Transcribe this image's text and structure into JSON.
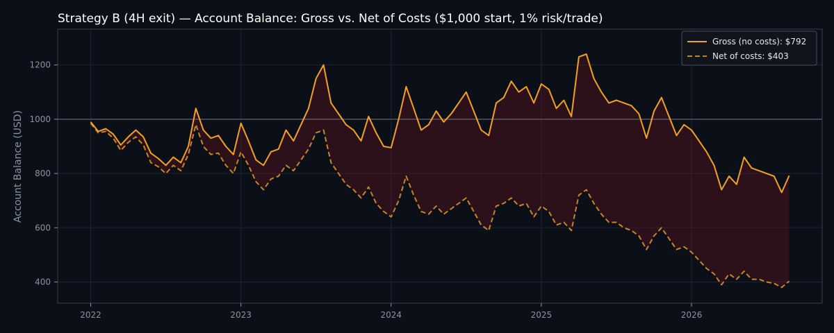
{
  "chart_data": {
    "type": "line",
    "title": "Strategy B (4H exit) — Account Balance: Gross vs. Net of Costs ($1,000 start, 1% risk/trade)",
    "ylabel": "Account Balance (USD)",
    "xlabel": "",
    "xlim": [
      2021.78,
      2026.87
    ],
    "ylim": [
      322,
      1332
    ],
    "x_ticks": [
      2022,
      2023,
      2024,
      2025,
      2026
    ],
    "x_tick_labels": [
      "2022",
      "2023",
      "2024",
      "2025",
      "2026"
    ],
    "y_ticks": [
      400,
      600,
      800,
      1000,
      1200
    ],
    "y_tick_labels": [
      "400",
      "600",
      "800",
      "1000",
      "1200"
    ],
    "reference_line": 1000,
    "grid": true,
    "legend_position": "top-right",
    "shaded_between_series": true,
    "colors": {
      "gross": "#f5a21b",
      "net": "#c9861e",
      "fill": "#5a1520",
      "reference": "#5c6370",
      "grid": "#1e2430",
      "frame": "#3a404c",
      "background": "#0b0f17"
    },
    "x": [
      2022.0,
      2022.05,
      2022.1,
      2022.15,
      2022.2,
      2022.25,
      2022.3,
      2022.35,
      2022.4,
      2022.45,
      2022.5,
      2022.55,
      2022.6,
      2022.65,
      2022.7,
      2022.75,
      2022.8,
      2022.85,
      2022.9,
      2022.95,
      2023.0,
      2023.05,
      2023.1,
      2023.15,
      2023.2,
      2023.25,
      2023.3,
      2023.35,
      2023.4,
      2023.45,
      2023.5,
      2023.55,
      2023.6,
      2023.65,
      2023.7,
      2023.75,
      2023.8,
      2023.85,
      2023.9,
      2023.95,
      2024.0,
      2024.05,
      2024.1,
      2024.15,
      2024.2,
      2024.25,
      2024.3,
      2024.35,
      2024.4,
      2024.45,
      2024.5,
      2024.55,
      2024.6,
      2024.65,
      2024.7,
      2024.75,
      2024.8,
      2024.85,
      2024.9,
      2024.95,
      2025.0,
      2025.05,
      2025.1,
      2025.15,
      2025.2,
      2025.25,
      2025.3,
      2025.35,
      2025.4,
      2025.45,
      2025.5,
      2025.55,
      2025.6,
      2025.65,
      2025.7,
      2025.75,
      2025.8,
      2025.85,
      2025.9,
      2025.95,
      2026.0,
      2026.05,
      2026.1,
      2026.15,
      2026.2,
      2026.25,
      2026.3,
      2026.35,
      2026.4,
      2026.45,
      2026.5,
      2026.55,
      2026.6,
      2026.65
    ],
    "series": [
      {
        "name": "Gross (no costs): $792",
        "style": "solid",
        "values": [
          990,
          955,
          965,
          945,
          905,
          935,
          960,
          935,
          875,
          855,
          830,
          860,
          840,
          900,
          1040,
          960,
          930,
          940,
          900,
          870,
          985,
          920,
          850,
          830,
          880,
          890,
          960,
          920,
          980,
          1040,
          1150,
          1200,
          1060,
          1020,
          980,
          960,
          920,
          1010,
          950,
          900,
          895,
          1000,
          1120,
          1040,
          960,
          980,
          1030,
          990,
          1020,
          1060,
          1100,
          1030,
          960,
          940,
          1060,
          1080,
          1140,
          1100,
          1120,
          1060,
          1130,
          1110,
          1040,
          1070,
          1010,
          1230,
          1240,
          1150,
          1100,
          1060,
          1070,
          1060,
          1050,
          1020,
          930,
          1030,
          1080,
          1010,
          940,
          980,
          960,
          920,
          880,
          830,
          740,
          790,
          760,
          860,
          820,
          810,
          800,
          790,
          730,
          792
        ]
      },
      {
        "name": "Net of costs: $403",
        "style": "dashed",
        "values": [
          985,
          950,
          955,
          930,
          885,
          915,
          935,
          905,
          840,
          825,
          800,
          830,
          810,
          870,
          980,
          900,
          870,
          875,
          830,
          800,
          880,
          830,
          770,
          740,
          780,
          790,
          830,
          810,
          850,
          890,
          950,
          960,
          840,
          800,
          760,
          740,
          710,
          750,
          690,
          660,
          640,
          700,
          790,
          720,
          660,
          650,
          680,
          650,
          670,
          690,
          710,
          660,
          610,
          590,
          680,
          690,
          710,
          680,
          690,
          640,
          680,
          660,
          610,
          620,
          590,
          720,
          740,
          690,
          650,
          620,
          620,
          600,
          590,
          570,
          520,
          570,
          600,
          560,
          520,
          530,
          510,
          480,
          450,
          430,
          390,
          430,
          410,
          440,
          410,
          410,
          400,
          395,
          380,
          403
        ]
      }
    ]
  }
}
